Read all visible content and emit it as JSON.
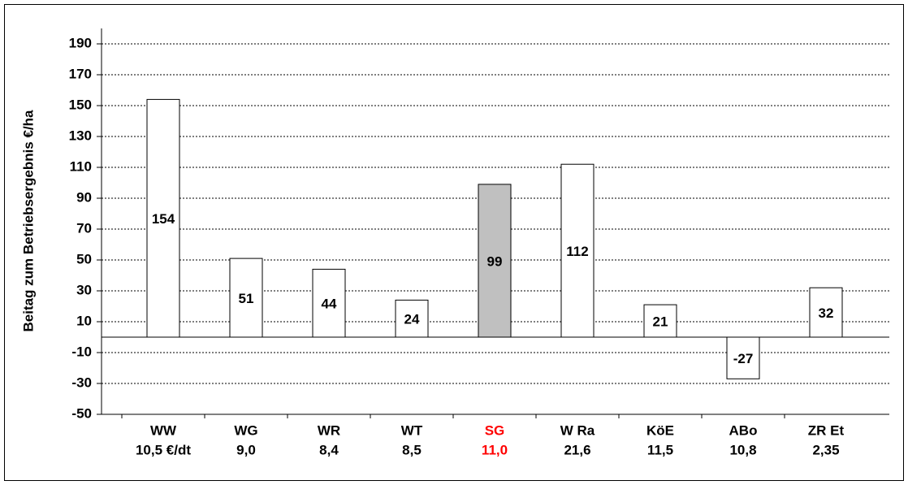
{
  "chart_data": {
    "type": "bar",
    "y_label": "Beitag zum Betriebsergebnis €/ha",
    "categories": [
      "WW",
      "WG",
      "WR",
      "WT",
      "SG",
      "W Ra",
      "KöE",
      "ABo",
      "ZR Et"
    ],
    "category_sublabels": [
      "10,5 €/dt",
      "9,0",
      "8,4",
      "8,5",
      "11,0",
      "21,6",
      "11,5",
      "10,8",
      "2,35"
    ],
    "label_colors": [
      "#000000",
      "#000000",
      "#000000",
      "#000000",
      "#ff0000",
      "#000000",
      "#000000",
      "#000000",
      "#000000"
    ],
    "values": [
      154,
      51,
      44,
      24,
      99,
      112,
      21,
      -27,
      32
    ],
    "colors": [
      "#ffffff",
      "#ffffff",
      "#ffffff",
      "#ffffff",
      "#c0c0c0",
      "#ffffff",
      "#ffffff",
      "#ffffff",
      "#ffffff"
    ],
    "ylim": [
      -50,
      200
    ],
    "yticks": [
      -50,
      -30,
      -10,
      10,
      30,
      50,
      70,
      90,
      110,
      130,
      150,
      170,
      190
    ],
    "grid": true
  }
}
